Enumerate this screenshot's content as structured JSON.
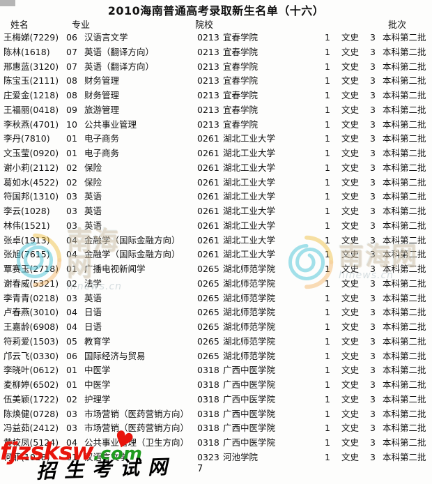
{
  "title": "2010海南普通高考录取新生名单（十六）",
  "page_number": "7",
  "header": {
    "name": "姓名",
    "major": "专业",
    "institution": "院校",
    "batch": "批次"
  },
  "watermarks": {
    "hinews_cn": "南海网",
    "hinews_url": "hinews.cn",
    "fjzsksw_red": "fjzsksw",
    "fjzsksw_green": ".com",
    "fjzsksw_heart": "♥",
    "fjzsksw_caption": "招生考试网"
  },
  "colors": {
    "watermark_red": "#e8140c",
    "watermark_green": "#1f9b1f",
    "text": "#111111",
    "background": "#fdfdfc"
  },
  "rows": [
    {
      "name": "王梅娣(7229)",
      "major_code": "06",
      "major": "汉语言文学",
      "inst_code": "0213",
      "institution": "宜春学院",
      "count": "1",
      "category": "文史",
      "score": "3",
      "batch": "本科第二批"
    },
    {
      "name": "陈林(1618)",
      "major_code": "07",
      "major": "英语（翻译方向）",
      "inst_code": "0213",
      "institution": "宜春学院",
      "count": "1",
      "category": "文史",
      "score": "3",
      "batch": "本科第二批"
    },
    {
      "name": "邢惠蓝(3120)",
      "major_code": "07",
      "major": "英语（翻译方向）",
      "inst_code": "0213",
      "institution": "宜春学院",
      "count": "1",
      "category": "文史",
      "score": "3",
      "batch": "本科第二批"
    },
    {
      "name": "陈宝玉(2111)",
      "major_code": "08",
      "major": "财务管理",
      "inst_code": "0213",
      "institution": "宜春学院",
      "count": "1",
      "category": "文史",
      "score": "3",
      "batch": "本科第二批"
    },
    {
      "name": "庄爱金(1218)",
      "major_code": "08",
      "major": "财务管理",
      "inst_code": "0213",
      "institution": "宜春学院",
      "count": "1",
      "category": "文史",
      "score": "3",
      "batch": "本科第二批"
    },
    {
      "name": "王福丽(0418)",
      "major_code": "09",
      "major": "旅游管理",
      "inst_code": "0213",
      "institution": "宜春学院",
      "count": "1",
      "category": "文史",
      "score": "3",
      "batch": "本科第二批"
    },
    {
      "name": "李秋燕(4701)",
      "major_code": "10",
      "major": "公共事业管理",
      "inst_code": "0213",
      "institution": "宜春学院",
      "count": "1",
      "category": "文史",
      "score": "3",
      "batch": "本科第二批"
    },
    {
      "name": "李丹(7810)",
      "major_code": "01",
      "major": "电子商务",
      "inst_code": "0261",
      "institution": "湖北工业大学",
      "count": "1",
      "category": "文史",
      "score": "3",
      "batch": "本科第二批"
    },
    {
      "name": "文玉莹(0920)",
      "major_code": "01",
      "major": "电子商务",
      "inst_code": "0261",
      "institution": "湖北工业大学",
      "count": "1",
      "category": "文史",
      "score": "3",
      "batch": "本科第二批"
    },
    {
      "name": "谢小莉(2112)",
      "major_code": "02",
      "major": "保险",
      "inst_code": "0261",
      "institution": "湖北工业大学",
      "count": "1",
      "category": "文史",
      "score": "3",
      "batch": "本科第二批"
    },
    {
      "name": "葛如水(4522)",
      "major_code": "02",
      "major": "保险",
      "inst_code": "0261",
      "institution": "湖北工业大学",
      "count": "1",
      "category": "文史",
      "score": "3",
      "batch": "本科第二批"
    },
    {
      "name": "符国邦(1310)",
      "major_code": "03",
      "major": "英语",
      "inst_code": "0261",
      "institution": "湖北工业大学",
      "count": "1",
      "category": "文史",
      "score": "3",
      "batch": "本科第二批"
    },
    {
      "name": "李云(1028)",
      "major_code": "03",
      "major": "英语",
      "inst_code": "0261",
      "institution": "湖北工业大学",
      "count": "1",
      "category": "文史",
      "score": "3",
      "batch": "本科第二批"
    },
    {
      "name": "林伟(1521)",
      "major_code": "03",
      "major": "英语",
      "inst_code": "0261",
      "institution": "湖北工业大学",
      "count": "1",
      "category": "文史",
      "score": "3",
      "batch": "本科第二批"
    },
    {
      "name": "张卓(1913)",
      "major_code": "04",
      "major": "金融学（国际金融方向）",
      "inst_code": "0261",
      "institution": "湖北工业大学",
      "count": "1",
      "category": "文史",
      "score": "3",
      "batch": "本科第二批"
    },
    {
      "name": "张旭(7615)",
      "major_code": "04",
      "major": "金融学（国际金融方向）",
      "inst_code": "0261",
      "institution": "湖北工业大学",
      "count": "1",
      "category": "文史",
      "score": "3",
      "batch": "本科第二批"
    },
    {
      "name": "覃赛玉(2718)",
      "major_code": "01",
      "major": "广播电视新闻学",
      "inst_code": "0265",
      "institution": "湖北师范学院",
      "count": "1",
      "category": "文史",
      "score": "3",
      "batch": "本科第二批"
    },
    {
      "name": "谢春威(5321)",
      "major_code": "02",
      "major": "法学",
      "inst_code": "0265",
      "institution": "湖北师范学院",
      "count": "1",
      "category": "文史",
      "score": "3",
      "batch": "本科第二批"
    },
    {
      "name": "李青青(0218)",
      "major_code": "03",
      "major": "英语",
      "inst_code": "0265",
      "institution": "湖北师范学院",
      "count": "1",
      "category": "文史",
      "score": "3",
      "batch": "本科第二批"
    },
    {
      "name": "卢春燕(3010)",
      "major_code": "04",
      "major": "日语",
      "inst_code": "0265",
      "institution": "湖北师范学院",
      "count": "1",
      "category": "文史",
      "score": "3",
      "batch": "本科第二批"
    },
    {
      "name": "王嘉龄(6908)",
      "major_code": "04",
      "major": "日语",
      "inst_code": "0265",
      "institution": "湖北师范学院",
      "count": "1",
      "category": "文史",
      "score": "3",
      "batch": "本科第二批"
    },
    {
      "name": "符莉爱(1503)",
      "major_code": "05",
      "major": "教育学",
      "inst_code": "0265",
      "institution": "湖北师范学院",
      "count": "1",
      "category": "文史",
      "score": "3",
      "batch": "本科第二批"
    },
    {
      "name": "邝云飞(0330)",
      "major_code": "06",
      "major": "国际经济与贸易",
      "inst_code": "0265",
      "institution": "湖北师范学院",
      "count": "1",
      "category": "文史",
      "score": "3",
      "batch": "本科第二批"
    },
    {
      "name": "李晓叶(0612)",
      "major_code": "01",
      "major": "中医学",
      "inst_code": "0318",
      "institution": "广西中医学院",
      "count": "1",
      "category": "文史",
      "score": "3",
      "batch": "本科第二批"
    },
    {
      "name": "麦柳婷(6502)",
      "major_code": "01",
      "major": "中医学",
      "inst_code": "0318",
      "institution": "广西中医学院",
      "count": "1",
      "category": "文史",
      "score": "3",
      "batch": "本科第二批"
    },
    {
      "name": "伍美颖(1722)",
      "major_code": "02",
      "major": "护理学",
      "inst_code": "0318",
      "institution": "广西中医学院",
      "count": "1",
      "category": "文史",
      "score": "3",
      "batch": "本科第二批"
    },
    {
      "name": "陈焕健(0728)",
      "major_code": "03",
      "major": "市场营销（医药营销方向）",
      "inst_code": "0318",
      "institution": "广西中医学院",
      "count": "1",
      "category": "文史",
      "score": "3",
      "batch": "本科第二批"
    },
    {
      "name": "冯益茹(2412)",
      "major_code": "03",
      "major": "市场营销（医药营销方向）",
      "inst_code": "0318",
      "institution": "广西中医学院",
      "count": "1",
      "category": "文史",
      "score": "3",
      "batch": "本科第二批"
    },
    {
      "name": "黄校凤(5124)",
      "major_code": "04",
      "major": "公共事业管理（卫生方向）",
      "inst_code": "0318",
      "institution": "广西中医学院",
      "count": "1",
      "category": "文史",
      "score": "3",
      "batch": "本科第二批"
    },
    {
      "name": "何菲(1028)",
      "major_code": "01",
      "major": "汉语言文学",
      "inst_code": "0323",
      "institution": "河池学院",
      "count": "1",
      "category": "文史",
      "score": "3",
      "batch": "本科第二批"
    }
  ]
}
